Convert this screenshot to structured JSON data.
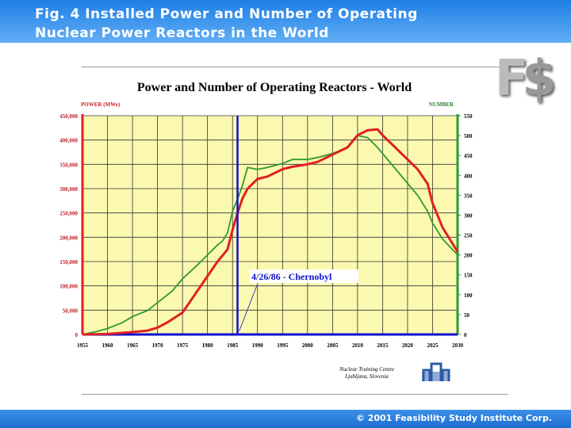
{
  "header": {
    "line1": "Fig. 4   Installed Power and Number of Operating",
    "line2": "Nuclear Power Reactors in the World"
  },
  "footer": {
    "copyright": "© 2001 Feasibility Study Institute Corp."
  },
  "logo": {
    "text": "FS$"
  },
  "credit": {
    "line1": "Nuclear Training Centre",
    "line2": "Ljubljana, Slovenia"
  },
  "chart_data": {
    "type": "line",
    "title": "Power and Number of Operating Reactors - World",
    "ylabel": "POWER (MWe)",
    "y2label": "NUMBER",
    "xlim": [
      1955,
      2030
    ],
    "ylim": [
      0,
      450000
    ],
    "y2lim": [
      0,
      550
    ],
    "xticks": [
      1955,
      1960,
      1965,
      1970,
      1975,
      1980,
      1985,
      1990,
      1995,
      2000,
      2005,
      2010,
      2015,
      2020,
      2025,
      2030
    ],
    "yticks": [
      "0",
      "50,000",
      "100,000",
      "150,000",
      "200,000",
      "250,000",
      "300,000",
      "350,000",
      "400,000",
      "450,000"
    ],
    "y2ticks": [
      0,
      50,
      100,
      150,
      200,
      250,
      300,
      350,
      400,
      450,
      500,
      550
    ],
    "grid": true,
    "colors": {
      "power": "#e02020",
      "number": "#2e9a2e",
      "event": "#1010d0",
      "plot_bg": "#fbf8b0"
    },
    "series": [
      {
        "axis": "left",
        "x": [
          1955,
          1960,
          1965,
          1968,
          1970,
          1972,
          1975,
          1978,
          1980,
          1982,
          1984,
          1985,
          1986,
          1987,
          1988,
          1990,
          1992,
          1995,
          1997,
          2000,
          2002,
          2005,
          2008,
          2010,
          2012,
          2014,
          2015,
          2018,
          2020,
          2022,
          2024,
          2025,
          2027,
          2030
        ],
        "values": [
          0,
          1000,
          5000,
          8000,
          14000,
          25000,
          45000,
          90000,
          120000,
          150000,
          175000,
          215000,
          250000,
          280000,
          300000,
          320000,
          325000,
          340000,
          345000,
          350000,
          355000,
          370000,
          385000,
          410000,
          420000,
          422000,
          410000,
          380000,
          360000,
          340000,
          310000,
          270000,
          220000,
          170000
        ]
      },
      {
        "axis": "right",
        "x": [
          1955,
          1958,
          1960,
          1963,
          1965,
          1968,
          1970,
          1973,
          1975,
          1978,
          1980,
          1982,
          1983,
          1984,
          1985,
          1986,
          1987,
          1988,
          1990,
          1992,
          1995,
          1997,
          2000,
          2002,
          2005,
          2008,
          2010,
          2012,
          2014,
          2016,
          2018,
          2020,
          2022,
          2024,
          2025,
          2027,
          2030
        ],
        "values": [
          0,
          8,
          15,
          30,
          45,
          60,
          80,
          110,
          140,
          175,
          200,
          225,
          235,
          255,
          310,
          340,
          375,
          420,
          415,
          420,
          430,
          440,
          440,
          445,
          455,
          470,
          500,
          495,
          470,
          440,
          410,
          380,
          350,
          310,
          280,
          240,
          200
        ]
      }
    ],
    "annotation": "4/26/86 - Chernobyl",
    "event_x": 1986
  }
}
